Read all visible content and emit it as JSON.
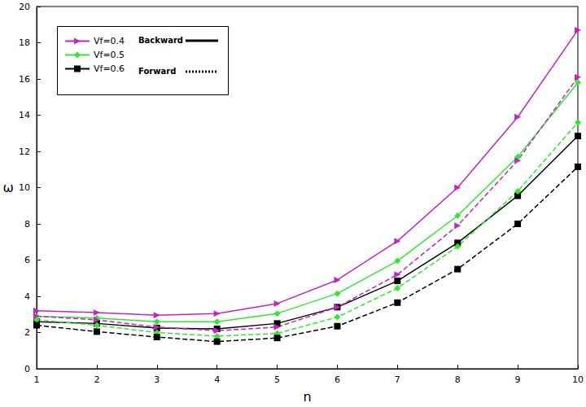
{
  "chart_data": {
    "type": "line",
    "x_label": "n",
    "y_label": "ω",
    "x": [
      1,
      2,
      3,
      4,
      5,
      6,
      7,
      8,
      9,
      10
    ],
    "xlim": [
      1,
      10
    ],
    "xticks": [
      1,
      2,
      3,
      4,
      5,
      6,
      7,
      8,
      9,
      10
    ],
    "ylim": [
      0,
      20
    ],
    "yticks": [
      0,
      2,
      4,
      6,
      8,
      10,
      12,
      14,
      16,
      18,
      20
    ],
    "grid": false,
    "legend": "upper left",
    "series": [
      {
        "name": "Vf=0.4",
        "color": "#c026c0",
        "marker": "triangle",
        "line_style": "solid",
        "values": [
          3.2,
          3.1,
          2.95,
          3.05,
          3.6,
          4.9,
          7.05,
          10.0,
          13.9,
          18.7
        ]
      },
      {
        "name": "Vf=0.5",
        "color": "#33e633",
        "marker": "diamond",
        "line_style": "solid",
        "values": [
          2.9,
          2.8,
          2.6,
          2.6,
          3.05,
          4.15,
          5.95,
          8.45,
          11.7,
          15.8
        ]
      },
      {
        "name": "Vf=0.6",
        "color": "#000000",
        "marker": "square",
        "line_style": "solid",
        "values": [
          2.6,
          2.5,
          2.25,
          2.2,
          2.5,
          3.4,
          4.85,
          6.95,
          9.55,
          12.85
        ]
      },
      {
        "name": "Vf=0.4",
        "color": "#c026c0",
        "marker": "triangle",
        "line_style": "dashed",
        "values": [
          2.9,
          2.7,
          2.3,
          2.1,
          2.3,
          3.4,
          5.2,
          7.9,
          11.5,
          16.1
        ]
      },
      {
        "name": "Vf=0.5",
        "color": "#33e633",
        "marker": "diamond",
        "line_style": "dashed",
        "values": [
          2.7,
          2.4,
          2.0,
          1.8,
          1.95,
          2.85,
          4.45,
          6.75,
          9.8,
          13.6
        ]
      },
      {
        "name": "Vf=0.6",
        "color": "#000000",
        "marker": "square",
        "line_style": "dashed",
        "values": [
          2.4,
          2.05,
          1.75,
          1.5,
          1.7,
          2.35,
          3.65,
          5.5,
          8.0,
          11.15
        ]
      }
    ],
    "annotations": [
      {
        "text": "Backward",
        "line_style": "solid"
      },
      {
        "text": "Forward",
        "line_style": "dotted"
      }
    ]
  }
}
